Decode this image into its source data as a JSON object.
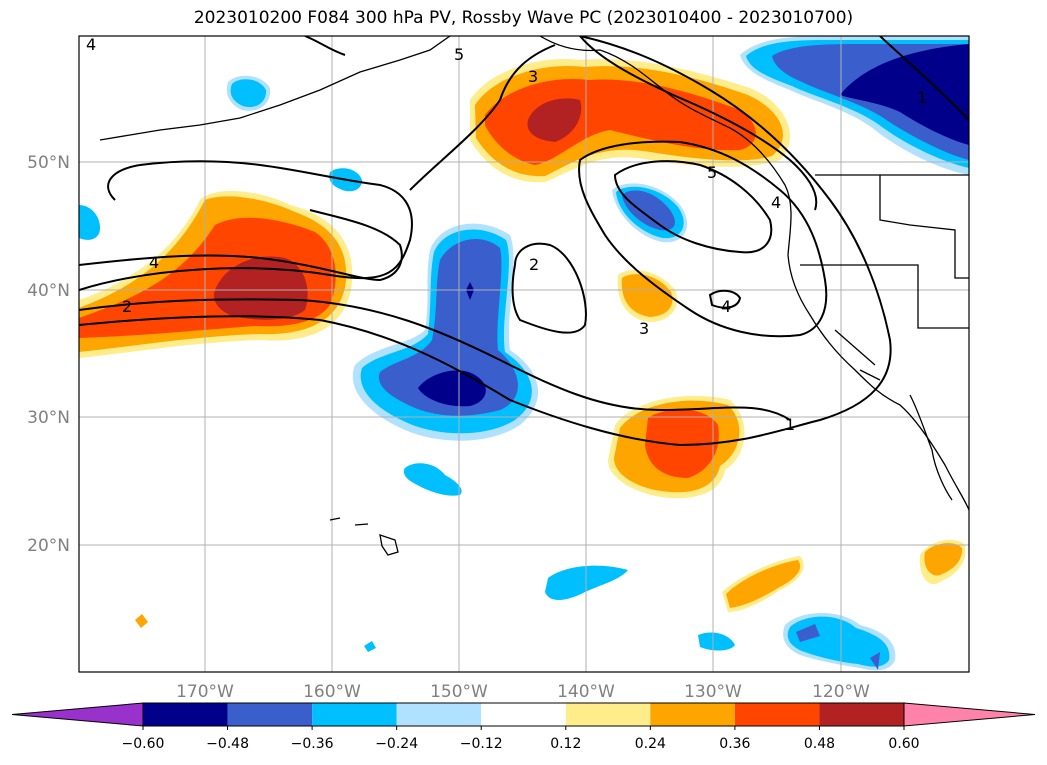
{
  "title": "2023010200 F084 300 hPa PV, Rossby Wave PC (2023010400 - 2023010700)",
  "lat_ticks": [
    "50°N",
    "40°N",
    "30°N",
    "20°N"
  ],
  "lon_ticks": [
    "170°W",
    "160°W",
    "150°W",
    "140°W",
    "130°W",
    "120°W"
  ],
  "colorbar": {
    "labels": [
      "−0.60",
      "−0.48",
      "−0.36",
      "−0.24",
      "−0.12",
      "0.12",
      "0.24",
      "0.36",
      "0.48",
      "0.60"
    ],
    "colors": [
      "#9932cc",
      "#00008b",
      "#3a5fcd",
      "#00bfff",
      "#b0e2ff",
      "#ffffff",
      "#ffec8b",
      "#ffa500",
      "#ff4500",
      "#b22222",
      "#ff82ab"
    ]
  },
  "contour_labels": [
    "4",
    "5",
    "3",
    "1",
    "5",
    "4",
    "4",
    "2",
    "2",
    "4",
    "3",
    "1"
  ]
}
